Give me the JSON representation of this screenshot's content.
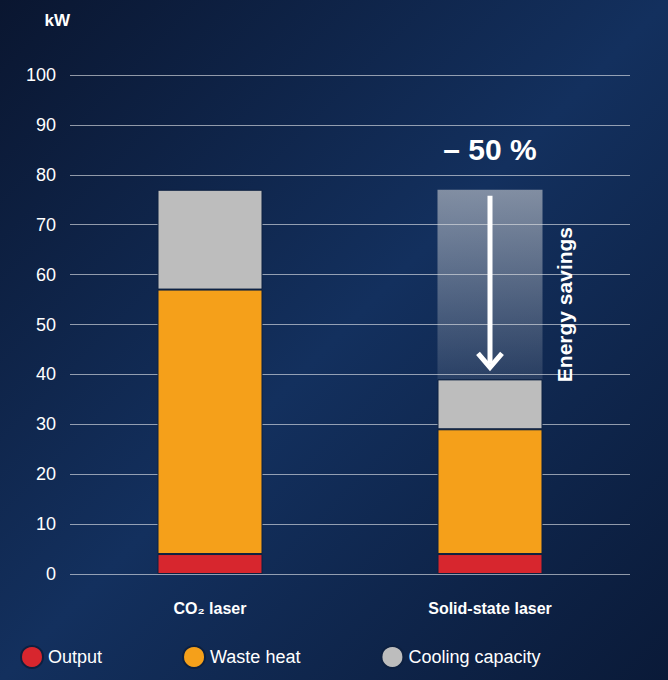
{
  "chart_data": {
    "type": "bar",
    "stacked": true,
    "ylabel": "kW",
    "categories": [
      "CO₂ laser",
      "Solid-state laser"
    ],
    "series": [
      {
        "name": "Output",
        "color": "#d7262e",
        "values": [
          4,
          4
        ]
      },
      {
        "name": "Waste heat",
        "color": "#f5a01a",
        "values": [
          53,
          25
        ]
      },
      {
        "name": "Cooling capacity",
        "color": "#bdbdbd",
        "values": [
          20,
          10
        ]
      }
    ],
    "ylim": [
      0,
      100
    ],
    "yticks": [
      0,
      10,
      20,
      30,
      40,
      50,
      60,
      70,
      80,
      90,
      100
    ],
    "grid": true,
    "legend": "bottom left",
    "annotations": [
      "– 50 %",
      "Energy savings"
    ]
  }
}
